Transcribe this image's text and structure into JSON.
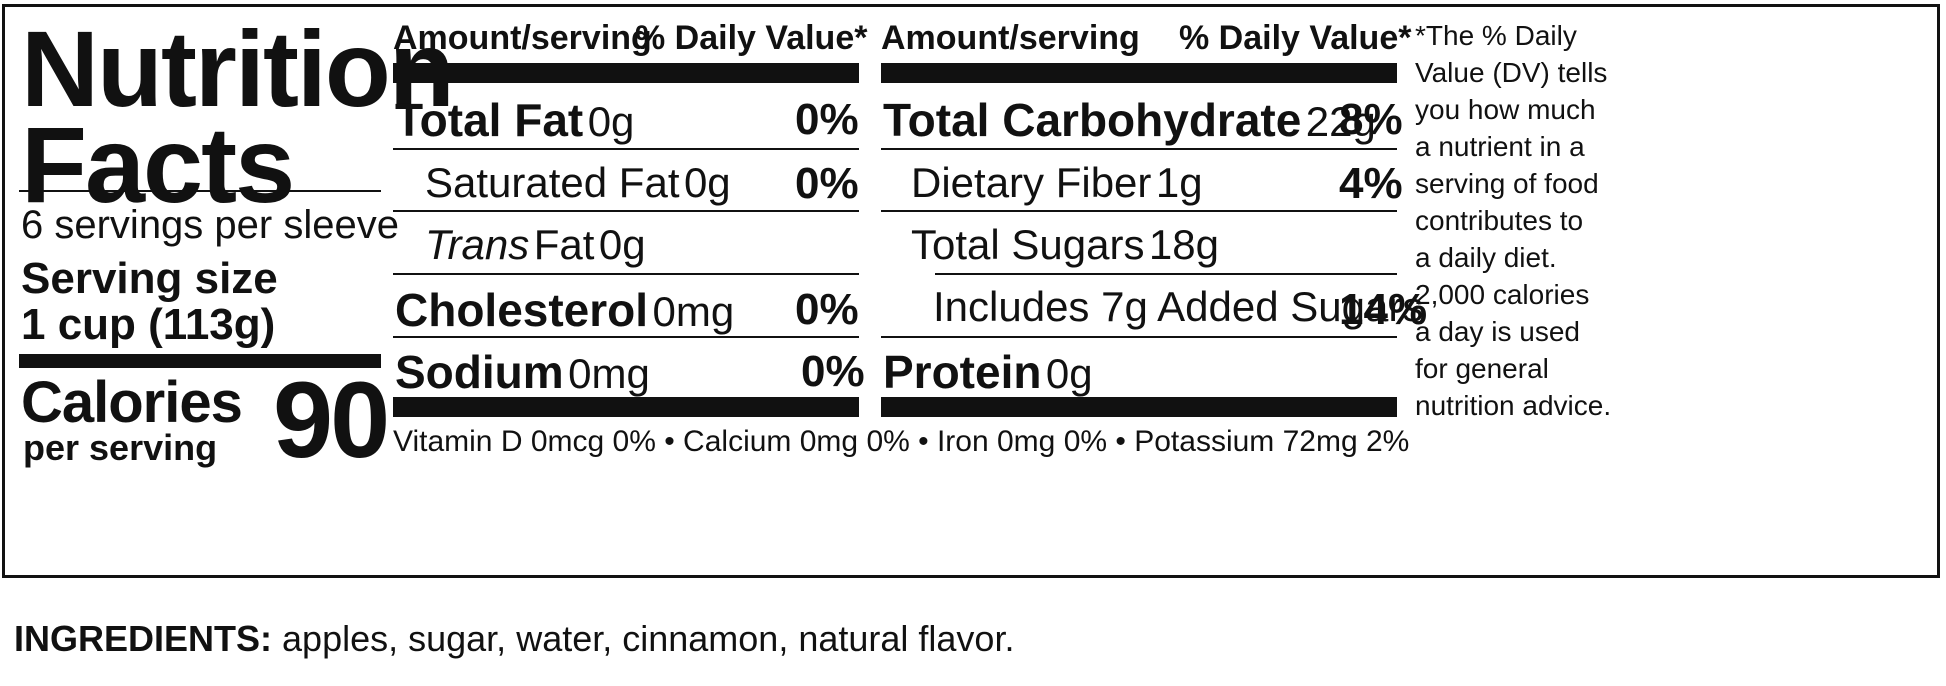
{
  "panel": {
    "title_line1": "Nutrition",
    "title_line2": "Facts",
    "servings_per_container": "6 servings per sleeve",
    "serving_size_label": "Serving size",
    "serving_size_value": "1 cup (113g)",
    "calories_label": "Calories",
    "calories_sublabel": "per serving",
    "calories_value": "90"
  },
  "left_column": {
    "header_amount": "Amount/serving",
    "header_dv": "% Daily Value*",
    "rows": [
      {
        "name": "Total Fat",
        "amount": "0g",
        "dv": "0%"
      },
      {
        "name": "Saturated Fat",
        "amount": "0g",
        "dv": "0%"
      },
      {
        "name": "Trans",
        "name_suffix": "Fat",
        "amount": "0g",
        "dv": ""
      },
      {
        "name": "Cholesterol",
        "amount": "0mg",
        "dv": "0%"
      },
      {
        "name": "Sodium",
        "amount": "0mg",
        "dv": "0%"
      }
    ]
  },
  "right_column": {
    "header_amount": "Amount/serving",
    "header_dv": "% Daily Value*",
    "rows": [
      {
        "name": "Total Carbohydrate",
        "amount": "22g",
        "dv": "8%"
      },
      {
        "name": "Dietary Fiber",
        "amount": "1g",
        "dv": "4%"
      },
      {
        "name": "Total Sugars",
        "amount": "18g",
        "dv": ""
      },
      {
        "name": "Includes 7g Added Sugars",
        "amount": "",
        "dv": "14%"
      },
      {
        "name": "Protein",
        "amount": "0g",
        "dv": ""
      }
    ]
  },
  "vitamins_line": "Vitamin D 0mcg 0% • Calcium 0mg 0% • Iron 0mg 0% • Potassium 72mg 2%",
  "footnote": [
    "*The % Daily",
    "Value (DV) tells",
    "you how much",
    "a nutrient in a",
    "serving of food",
    "contributes to",
    "a daily diet.",
    "2,000 calories",
    "a day is used",
    "for general",
    "nutrition advice."
  ],
  "ingredients": {
    "label": "INGREDIENTS:",
    "text": "apples, sugar, water, cinnamon, natural flavor."
  }
}
